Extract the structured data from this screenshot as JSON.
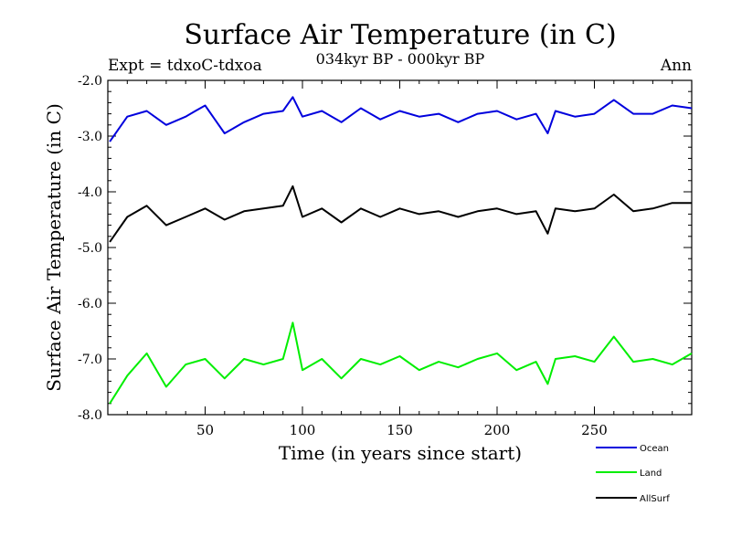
{
  "chart_data": {
    "type": "line",
    "title": "Surface Air Temperature (in C)",
    "subtitle": "034kyr BP - 000kyr BP",
    "left_label": "Expt = tdxoC-tdxoa",
    "right_label": "Ann",
    "xlabel": "Time (in years since start)",
    "ylabel": "Surface Air Temperature (in C)",
    "xlim": [
      0,
      300
    ],
    "ylim": [
      -8.0,
      -2.0
    ],
    "x_ticks": [
      50,
      100,
      150,
      200,
      250
    ],
    "y_ticks": [
      -2.0,
      -3.0,
      -4.0,
      -5.0,
      -6.0,
      -7.0,
      -8.0
    ],
    "y_tick_labels": [
      "-2.0",
      "-3.0",
      "-4.0",
      "-5.0",
      "-6.0",
      "-7.0",
      "-8.0"
    ],
    "x_tick_labels": [
      "50",
      "100",
      "150",
      "200",
      "250"
    ],
    "grid": false,
    "legend_position": "bottom-right-outside",
    "series": [
      {
        "name": "Ocean",
        "color": "#0000dd",
        "x": [
          1,
          10,
          20,
          30,
          40,
          45,
          50,
          55,
          60,
          70,
          80,
          90,
          95,
          100,
          110,
          120,
          130,
          140,
          150,
          160,
          170,
          180,
          190,
          200,
          210,
          220,
          226,
          230,
          240,
          250,
          260,
          270,
          280,
          290,
          300
        ],
        "values": [
          -3.1,
          -2.65,
          -2.55,
          -2.8,
          -2.65,
          -2.55,
          -2.45,
          -2.7,
          -2.95,
          -2.75,
          -2.6,
          -2.55,
          -2.3,
          -2.65,
          -2.55,
          -2.75,
          -2.5,
          -2.7,
          -2.55,
          -2.65,
          -2.6,
          -2.75,
          -2.6,
          -2.55,
          -2.7,
          -2.6,
          -2.95,
          -2.55,
          -2.65,
          -2.6,
          -2.35,
          -2.6,
          -2.6,
          -2.45,
          -2.5
        ]
      },
      {
        "name": "Land",
        "color": "#00ee00",
        "x": [
          1,
          10,
          20,
          30,
          40,
          50,
          60,
          70,
          80,
          90,
          95,
          100,
          110,
          120,
          130,
          140,
          150,
          160,
          170,
          180,
          190,
          200,
          210,
          220,
          226,
          230,
          240,
          250,
          260,
          270,
          280,
          290,
          300
        ],
        "values": [
          -7.8,
          -7.3,
          -6.9,
          -7.5,
          -7.1,
          -7.0,
          -7.35,
          -7.0,
          -7.1,
          -7.0,
          -6.35,
          -7.2,
          -7.0,
          -7.35,
          -7.0,
          -7.1,
          -6.95,
          -7.2,
          -7.05,
          -7.15,
          -7.0,
          -6.9,
          -7.2,
          -7.05,
          -7.45,
          -7.0,
          -6.95,
          -7.05,
          -6.6,
          -7.05,
          -7.0,
          -7.1,
          -6.9
        ]
      },
      {
        "name": "AllSurf",
        "color": "#000000",
        "x": [
          1,
          10,
          20,
          30,
          40,
          50,
          60,
          70,
          80,
          90,
          95,
          100,
          110,
          120,
          130,
          140,
          150,
          160,
          170,
          180,
          190,
          200,
          210,
          220,
          226,
          230,
          240,
          250,
          260,
          270,
          280,
          290,
          300
        ],
        "values": [
          -4.9,
          -4.45,
          -4.25,
          -4.6,
          -4.45,
          -4.3,
          -4.5,
          -4.35,
          -4.3,
          -4.25,
          -3.9,
          -4.45,
          -4.3,
          -4.55,
          -4.3,
          -4.45,
          -4.3,
          -4.4,
          -4.35,
          -4.45,
          -4.35,
          -4.3,
          -4.4,
          -4.35,
          -4.75,
          -4.3,
          -4.35,
          -4.3,
          -4.05,
          -4.35,
          -4.3,
          -4.2,
          -4.2
        ]
      }
    ]
  }
}
